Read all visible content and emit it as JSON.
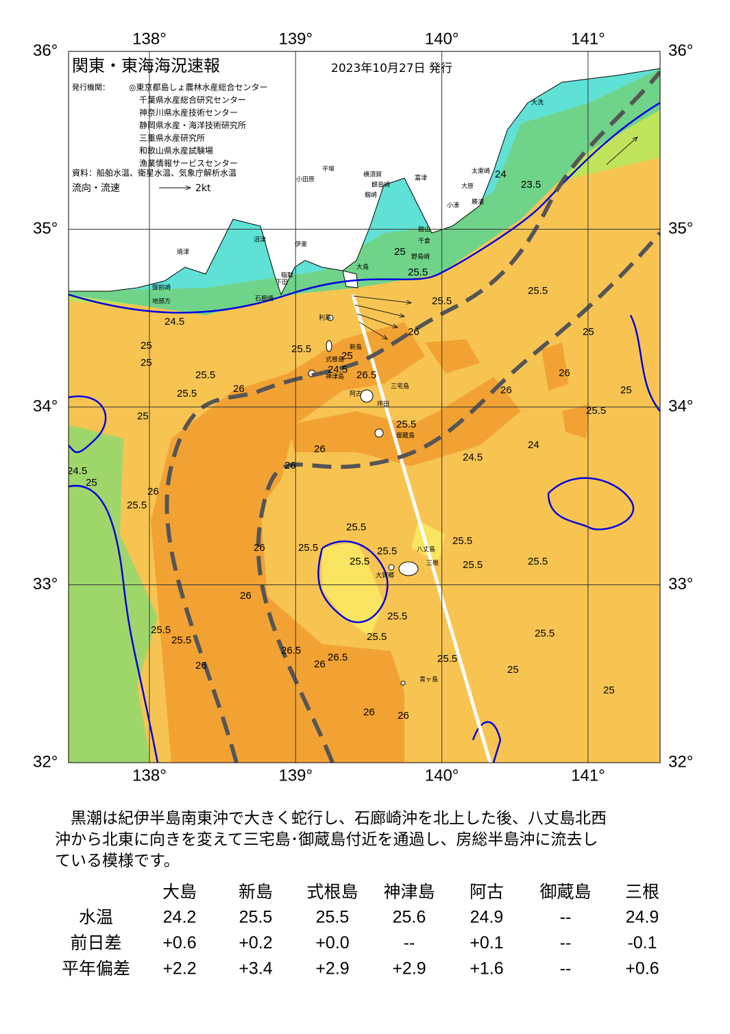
{
  "header": {
    "title": "関東・東海海況速報",
    "date": "2023年10月27日 発行",
    "issuer_label": "発行機関：",
    "issuers": [
      "◎東京都島しょ農林水産総合センター",
      "千葉県水産総合研究センター",
      "神奈川県水産技術センター",
      "静岡県水産・海洋技術研究所",
      "三重県水産研究所",
      "和歌山県水産試験場",
      "漁業情報サービスセンター"
    ],
    "source": "資料：船舶水温、衛星水温、気象庁解析水温",
    "flow_label": "流向・流速",
    "flow_unit": "2kt"
  },
  "map": {
    "lon_ticks": [
      {
        "value": 138,
        "label": "138°"
      },
      {
        "value": 139,
        "label": "139°"
      },
      {
        "value": 140,
        "label": "140°"
      },
      {
        "value": 141,
        "label": "141°"
      }
    ],
    "lat_ticks": [
      {
        "value": 36,
        "label": "36°"
      },
      {
        "value": 35,
        "label": "35°"
      },
      {
        "value": 34,
        "label": "34°"
      },
      {
        "value": 33,
        "label": "33°"
      },
      {
        "value": 32,
        "label": "32°"
      }
    ],
    "places": [
      "大洗",
      "太東崎",
      "勝浦",
      "小湊",
      "大原",
      "富津",
      "館山",
      "千倉",
      "野島崎",
      "横須賀",
      "観音崎",
      "剱崎",
      "平塚",
      "小田原",
      "沼津",
      "伊東",
      "稲取",
      "下田",
      "石廊崎",
      "焼津",
      "御前崎",
      "地頭方",
      "大島",
      "利島",
      "新島",
      "式根島",
      "神津島",
      "三宅島",
      "阿古",
      "坪田",
      "御蔵島",
      "八丈島",
      "三根",
      "大賀郷",
      "青ヶ島"
    ],
    "contour_labels": [
      "24.5",
      "25",
      "25",
      "25.5",
      "25.5",
      "25",
      "26",
      "24.5",
      "25",
      "25.5",
      "26",
      "26",
      "26",
      "25.5",
      "24.5",
      "25",
      "25.5",
      "26",
      "26.5",
      "26.5",
      "26",
      "26.5",
      "26",
      "25.5",
      "25.5",
      "25.5",
      "25.5",
      "25.5",
      "25.5",
      "25.5",
      "25.5",
      "25.5",
      "26",
      "26",
      "26",
      "26",
      "25.5",
      "25.5",
      "25.5",
      "24",
      "24.5",
      "23.5",
      "24",
      "25",
      "25.5",
      "25.5",
      "25.5",
      "25",
      "26",
      "25.5",
      "26",
      "25",
      "25.5",
      "25",
      "25"
    ]
  },
  "text": {
    "lines": [
      "　黒潮は紀伊半島南東沖で大きく蛇行し、石廊崎沖を北上した後、八丈島北西",
      "沖から北東に向きを変えて三宅島･御蔵島付近を通過し、房総半島沖に流去し",
      "ている模様です。"
    ]
  },
  "table": {
    "columns": [
      "大島",
      "新島",
      "式根島",
      "神津島",
      "阿古",
      "御蔵島",
      "三根"
    ],
    "rows": [
      {
        "label": "水温",
        "cells": [
          "24.2",
          "25.5",
          "25.5",
          "25.6",
          "24.9",
          "--",
          "24.9"
        ]
      },
      {
        "label": "前日差",
        "cells": [
          "+0.6",
          "+0.2",
          "+0.0",
          "--",
          "+0.1",
          "--",
          "-0.1"
        ]
      },
      {
        "label": "平年偏差",
        "cells": [
          "+2.2",
          "+3.4",
          "+2.9",
          "+2.9",
          "+1.6",
          "--",
          "+0.6"
        ]
      }
    ]
  }
}
